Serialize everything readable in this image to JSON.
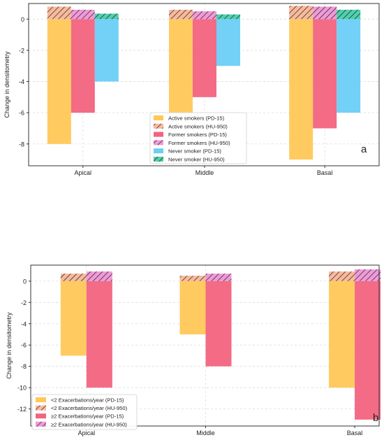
{
  "colors": {
    "orange": "#FFC857",
    "red": "#F2637E",
    "blue": "#6CCDF7",
    "teal": "#4FD0AE",
    "pink": "#F09AD8",
    "orange_hatch_bg": "#F9B99C"
  },
  "chart_data": [
    {
      "type": "bar",
      "panel_label": "a",
      "ylabel": "Change in densitometry",
      "categories": [
        "Apical",
        "Middle",
        "Basal"
      ],
      "ylim": [
        -9.4,
        1.0
      ],
      "yticks": [
        0,
        -2,
        -4,
        -6,
        -8
      ],
      "grid": true,
      "legend_position": "center",
      "series": [
        {
          "name": "Active smokers (PD-15)",
          "values": [
            -8,
            -6,
            -9
          ],
          "color": "orange",
          "hatched": false
        },
        {
          "name": "Active smokers (HU-950)",
          "values": [
            0.8,
            0.6,
            0.85
          ],
          "color": "orange_hatch_bg",
          "hatched": true
        },
        {
          "name": "Former smokers (PD-15)",
          "values": [
            -6,
            -5,
            -7
          ],
          "color": "red",
          "hatched": false
        },
        {
          "name": "Former smokers (HU-950)",
          "values": [
            0.6,
            0.5,
            0.8
          ],
          "color": "pink",
          "hatched": true
        },
        {
          "name": "Never smoker (PD-15)",
          "values": [
            -4,
            -3,
            -6
          ],
          "color": "blue",
          "hatched": false
        },
        {
          "name": "Never smoker (HU-950)",
          "values": [
            0.35,
            0.3,
            0.6
          ],
          "color": "teal",
          "hatched": true
        }
      ]
    },
    {
      "type": "bar",
      "panel_label": "b",
      "ylabel": "Change in densitometry",
      "categories": [
        "Apical",
        "Middle",
        "Basal"
      ],
      "ylim": [
        -13.6,
        1.5
      ],
      "yticks": [
        0,
        -2,
        -4,
        -6,
        -8,
        -10,
        -12
      ],
      "grid": true,
      "legend_position": "lower-left",
      "series": [
        {
          "name": "<2 Exacerbations/year (PD-15)",
          "values": [
            -7,
            -5,
            -10
          ],
          "color": "orange",
          "hatched": false
        },
        {
          "name": "<2 Exacerbations/year (HU-950)",
          "values": [
            0.7,
            0.5,
            0.9
          ],
          "color": "orange_hatch_bg",
          "hatched": true
        },
        {
          "name": "≥2 Exacerbations/year (PD-15)",
          "values": [
            -10,
            -8,
            -13
          ],
          "color": "red",
          "hatched": false
        },
        {
          "name": "≥2 Exacerbations/year (HU-950)",
          "values": [
            0.9,
            0.7,
            1.1
          ],
          "color": "pink",
          "hatched": true
        }
      ]
    }
  ]
}
